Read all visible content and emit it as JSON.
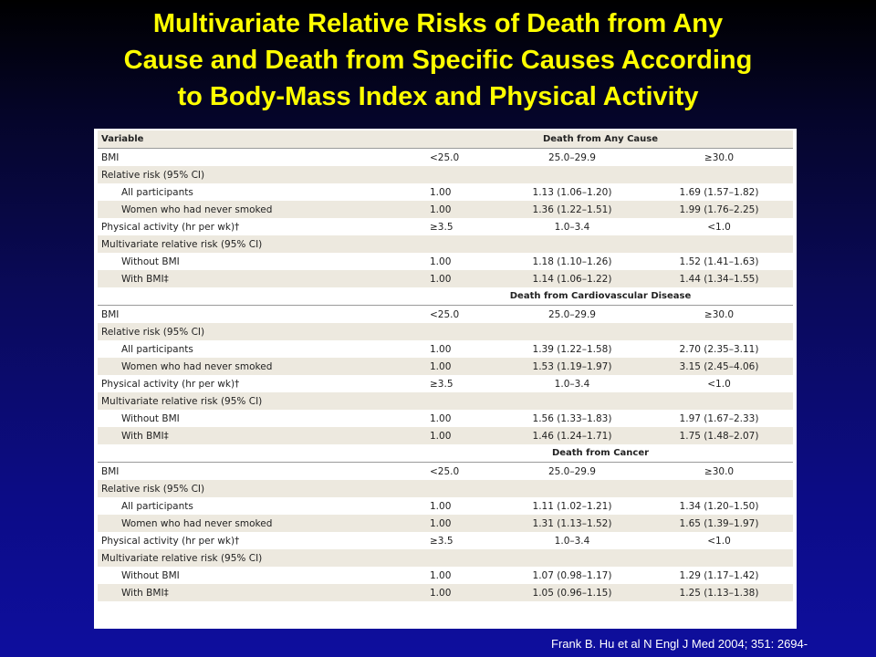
{
  "title": {
    "lines": [
      "Multivariate Relative Risks of Death from Any",
      "Cause and Death from Specific Causes According",
      "to Body-Mass Index and Physical Activity"
    ]
  },
  "table": {
    "header_variable": "Variable",
    "sections": [
      {
        "heading": "Death from Any Cause",
        "rows": [
          {
            "label": "BMI",
            "indent": false,
            "values": [
              "<25.0",
              "25.0–29.9",
              "≥30.0"
            ]
          },
          {
            "label": "Relative risk (95% CI)",
            "indent": false,
            "values": [
              "",
              "",
              ""
            ]
          },
          {
            "label": "All participants",
            "indent": true,
            "values": [
              "1.00",
              "1.13 (1.06–1.20)",
              "1.69 (1.57–1.82)"
            ]
          },
          {
            "label": "Women who had never smoked",
            "indent": true,
            "values": [
              "1.00",
              "1.36 (1.22–1.51)",
              "1.99 (1.76–2.25)"
            ]
          },
          {
            "label": "Physical activity (hr per wk)†",
            "indent": false,
            "values": [
              "≥3.5",
              "1.0–3.4",
              "<1.0"
            ]
          },
          {
            "label": "Multivariate relative risk (95% CI)",
            "indent": false,
            "values": [
              "",
              "",
              ""
            ]
          },
          {
            "label": "Without BMI",
            "indent": true,
            "values": [
              "1.00",
              "1.18 (1.10–1.26)",
              "1.52 (1.41–1.63)"
            ]
          },
          {
            "label": "With BMI‡",
            "indent": true,
            "values": [
              "1.00",
              "1.14 (1.06–1.22)",
              "1.44 (1.34–1.55)"
            ]
          }
        ]
      },
      {
        "heading": "Death from Cardiovascular Disease",
        "rows": [
          {
            "label": "BMI",
            "indent": false,
            "values": [
              "<25.0",
              "25.0–29.9",
              "≥30.0"
            ]
          },
          {
            "label": "Relative risk (95% CI)",
            "indent": false,
            "values": [
              "",
              "",
              ""
            ]
          },
          {
            "label": "All participants",
            "indent": true,
            "values": [
              "1.00",
              "1.39 (1.22–1.58)",
              "2.70 (2.35–3.11)"
            ]
          },
          {
            "label": "Women who had never smoked",
            "indent": true,
            "values": [
              "1.00",
              "1.53 (1.19–1.97)",
              "3.15 (2.45–4.06)"
            ]
          },
          {
            "label": "Physical activity (hr per wk)†",
            "indent": false,
            "values": [
              "≥3.5",
              "1.0–3.4",
              "<1.0"
            ]
          },
          {
            "label": "Multivariate relative risk (95% CI)",
            "indent": false,
            "values": [
              "",
              "",
              ""
            ]
          },
          {
            "label": "Without BMI",
            "indent": true,
            "values": [
              "1.00",
              "1.56 (1.33–1.83)",
              "1.97 (1.67–2.33)"
            ]
          },
          {
            "label": "With BMI‡",
            "indent": true,
            "values": [
              "1.00",
              "1.46 (1.24–1.71)",
              "1.75 (1.48–2.07)"
            ]
          }
        ]
      },
      {
        "heading": "Death from Cancer",
        "rows": [
          {
            "label": "BMI",
            "indent": false,
            "values": [
              "<25.0",
              "25.0–29.9",
              "≥30.0"
            ]
          },
          {
            "label": "Relative risk (95% CI)",
            "indent": false,
            "values": [
              "",
              "",
              ""
            ]
          },
          {
            "label": "All participants",
            "indent": true,
            "values": [
              "1.00",
              "1.11 (1.02–1.21)",
              "1.34 (1.20–1.50)"
            ]
          },
          {
            "label": "Women who had never smoked",
            "indent": true,
            "values": [
              "1.00",
              "1.31 (1.13–1.52)",
              "1.65 (1.39–1.97)"
            ]
          },
          {
            "label": "Physical activity (hr per wk)†",
            "indent": false,
            "values": [
              "≥3.5",
              "1.0–3.4",
              "<1.0"
            ]
          },
          {
            "label": "Multivariate relative risk (95% CI)",
            "indent": false,
            "values": [
              "",
              "",
              ""
            ]
          },
          {
            "label": "Without BMI",
            "indent": true,
            "values": [
              "1.00",
              "1.07 (0.98–1.17)",
              "1.29 (1.17–1.42)"
            ]
          },
          {
            "label": "With BMI‡",
            "indent": true,
            "values": [
              "1.00",
              "1.05 (0.96–1.15)",
              "1.25 (1.13–1.38)"
            ]
          }
        ]
      }
    ]
  },
  "citation": "Frank B. Hu et al N Engl J Med 2004; 351: 2694-"
}
